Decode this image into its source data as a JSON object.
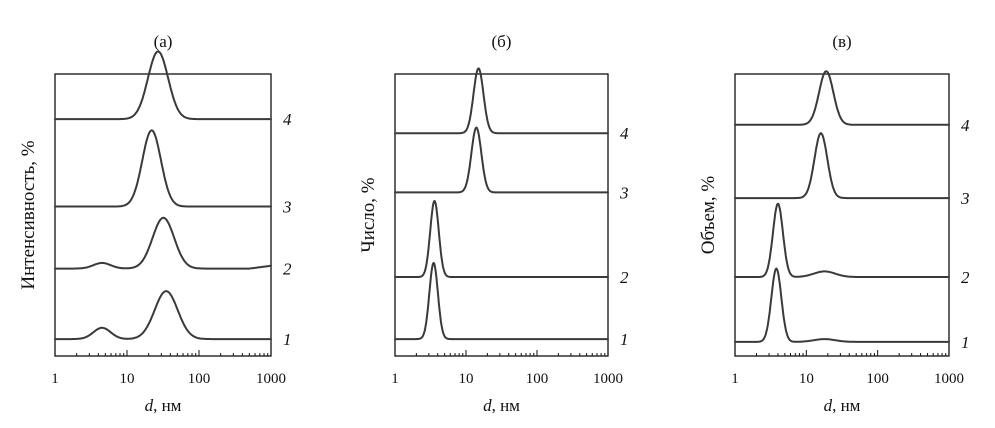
{
  "chart_data": [
    {
      "type": "line",
      "panel_label": "(а)",
      "ylabel": "Интенсивность, %",
      "xlabel_var": "d",
      "xlabel_unit": ", нм",
      "xscale": "log",
      "xlim": [
        1,
        1000
      ],
      "xticks": [
        "1",
        "10",
        "100",
        "1000"
      ],
      "series": [
        {
          "name": "1",
          "baseline": 0.94,
          "tail": 0.0,
          "peaks": [
            {
              "center": 4.5,
              "width": 0.12,
              "height": 0.04
            },
            {
              "center": 35,
              "width": 0.16,
              "height": 0.17
            }
          ]
        },
        {
          "name": "2",
          "baseline": 0.69,
          "tail": 0.01,
          "peaks": [
            {
              "center": 4.5,
              "width": 0.12,
              "height": 0.02
            },
            {
              "center": 32,
              "width": 0.15,
              "height": 0.18
            }
          ]
        },
        {
          "name": "3",
          "baseline": 0.47,
          "tail": 0.0,
          "peaks": [
            {
              "center": 22,
              "width": 0.13,
              "height": 0.27
            }
          ]
        },
        {
          "name": "4",
          "baseline": 0.16,
          "tail": 0.0,
          "peaks": [
            {
              "center": 27,
              "width": 0.14,
              "height": 0.24
            }
          ]
        }
      ]
    },
    {
      "type": "line",
      "panel_label": "(б)",
      "ylabel": "Число, %",
      "xlabel_var": "d",
      "xlabel_unit": ", нм",
      "xscale": "log",
      "xlim": [
        1,
        1000
      ],
      "xticks": [
        "1",
        "10",
        "100",
        "1000"
      ],
      "series": [
        {
          "name": "1",
          "baseline": 0.94,
          "tail": 0.0,
          "peaks": [
            {
              "center": 3.5,
              "width": 0.06,
              "height": 0.27
            }
          ]
        },
        {
          "name": "2",
          "baseline": 0.72,
          "tail": 0.0,
          "peaks": [
            {
              "center": 3.6,
              "width": 0.06,
              "height": 0.27
            }
          ]
        },
        {
          "name": "3",
          "baseline": 0.42,
          "tail": 0.0,
          "peaks": [
            {
              "center": 14,
              "width": 0.07,
              "height": 0.23
            }
          ]
        },
        {
          "name": "4",
          "baseline": 0.21,
          "tail": 0.0,
          "peaks": [
            {
              "center": 15,
              "width": 0.07,
              "height": 0.23
            }
          ]
        }
      ]
    },
    {
      "type": "line",
      "panel_label": "(в)",
      "ylabel": "Объем, %",
      "xlabel_var": "d",
      "xlabel_unit": ", нм",
      "xscale": "log",
      "xlim": [
        1,
        1000
      ],
      "xticks": [
        "1",
        "10",
        "100",
        "1000"
      ],
      "series": [
        {
          "name": "1",
          "baseline": 0.95,
          "tail": 0.0,
          "peaks": [
            {
              "center": 3.8,
              "width": 0.07,
              "height": 0.26
            },
            {
              "center": 18,
              "width": 0.15,
              "height": 0.01
            }
          ]
        },
        {
          "name": "2",
          "baseline": 0.72,
          "tail": 0.0,
          "peaks": [
            {
              "center": 4.0,
              "width": 0.07,
              "height": 0.26
            },
            {
              "center": 18,
              "width": 0.15,
              "height": 0.02
            }
          ]
        },
        {
          "name": "3",
          "baseline": 0.44,
          "tail": 0.0,
          "peaks": [
            {
              "center": 16,
              "width": 0.09,
              "height": 0.23
            }
          ]
        },
        {
          "name": "4",
          "baseline": 0.18,
          "tail": 0.0,
          "peaks": [
            {
              "center": 19,
              "width": 0.1,
              "height": 0.19
            }
          ]
        }
      ]
    }
  ]
}
